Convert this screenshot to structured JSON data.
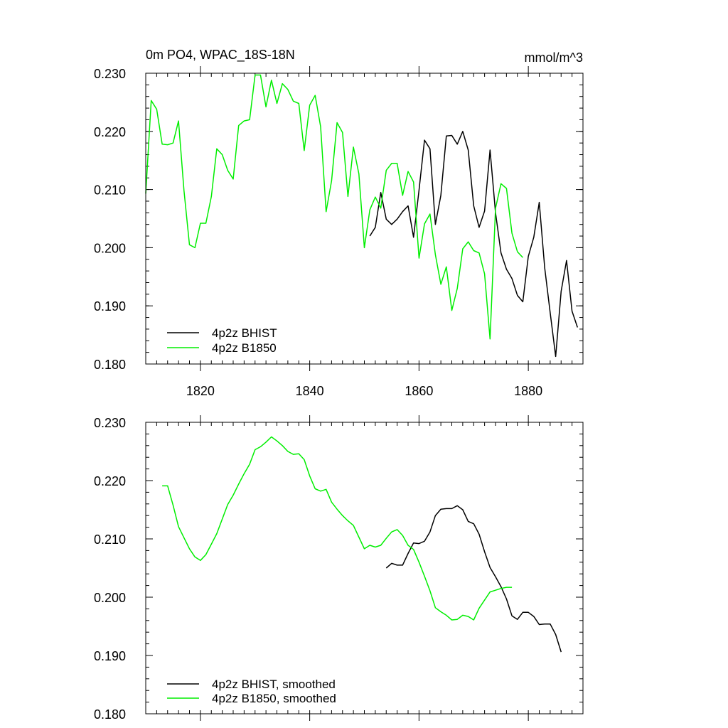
{
  "colors": {
    "bhist": "#000000",
    "b1850": "#00ee00",
    "axis": "#000000",
    "background": "#ffffff"
  },
  "chart_data": [
    {
      "type": "line",
      "title": "0m PO4, WPAC_18S-18N",
      "units": "mmol/m^3",
      "xlim": [
        1810,
        1890
      ],
      "ylim": [
        0.18,
        0.23
      ],
      "xticks": [
        1820,
        1840,
        1860,
        1880
      ],
      "xtick_labels": [
        "1820",
        "1840",
        "1860",
        "1880"
      ],
      "yticks": [
        0.18,
        0.19,
        0.2,
        0.21,
        0.22,
        0.23
      ],
      "ytick_labels": [
        "0.180",
        "0.190",
        "0.200",
        "0.210",
        "0.220",
        "0.230"
      ],
      "grid": false,
      "legend": "bottom-left",
      "series": [
        {
          "name": "4p2z BHIST",
          "color": "#000000",
          "x": [
            1851,
            1852,
            1853,
            1854,
            1855,
            1856,
            1857,
            1858,
            1859,
            1860,
            1861,
            1862,
            1863,
            1864,
            1865,
            1866,
            1867,
            1868,
            1869,
            1870,
            1871,
            1872,
            1873,
            1874,
            1875,
            1876,
            1877,
            1878,
            1879,
            1880,
            1881,
            1882,
            1883,
            1884,
            1885,
            1886,
            1887,
            1888,
            1889
          ],
          "y": [
            0.202,
            0.2035,
            0.2095,
            0.2049,
            0.204,
            0.2049,
            0.2062,
            0.2072,
            0.2018,
            0.2099,
            0.2185,
            0.217,
            0.204,
            0.209,
            0.2192,
            0.2193,
            0.2178,
            0.22,
            0.2168,
            0.2072,
            0.2035,
            0.2063,
            0.2168,
            0.206,
            0.1991,
            0.1963,
            0.1947,
            0.1918,
            0.1907,
            0.1985,
            0.2018,
            0.2078,
            0.1965,
            0.1888,
            0.1813,
            0.1925,
            0.1978,
            0.1891,
            0.1863
          ]
        },
        {
          "name": "4p2z B1850",
          "color": "#00ee00",
          "x": [
            1810,
            1811,
            1812,
            1813,
            1814,
            1815,
            1816,
            1817,
            1818,
            1819,
            1820,
            1821,
            1822,
            1823,
            1824,
            1825,
            1826,
            1827,
            1828,
            1829,
            1830,
            1831,
            1832,
            1833,
            1834,
            1835,
            1836,
            1837,
            1838,
            1839,
            1840,
            1841,
            1842,
            1843,
            1844,
            1845,
            1846,
            1847,
            1848,
            1849,
            1850,
            1851,
            1852,
            1853,
            1854,
            1855,
            1856,
            1857,
            1858,
            1859,
            1860,
            1861,
            1862,
            1863,
            1864,
            1865,
            1866,
            1867,
            1868,
            1869,
            1870,
            1871,
            1872,
            1873,
            1874,
            1875,
            1876,
            1877,
            1878,
            1879
          ],
          "y": [
            0.2093,
            0.2253,
            0.2238,
            0.2178,
            0.2177,
            0.218,
            0.2218,
            0.2098,
            0.2005,
            0.2,
            0.2042,
            0.2042,
            0.2088,
            0.217,
            0.216,
            0.2133,
            0.2118,
            0.221,
            0.2218,
            0.222,
            0.2297,
            0.2297,
            0.2242,
            0.2288,
            0.2248,
            0.2282,
            0.2272,
            0.2252,
            0.2248,
            0.2167,
            0.2245,
            0.2262,
            0.2208,
            0.2062,
            0.2115,
            0.2215,
            0.2198,
            0.2088,
            0.2173,
            0.2127,
            0.2,
            0.2065,
            0.2087,
            0.2068,
            0.2133,
            0.2145,
            0.2145,
            0.209,
            0.2131,
            0.2113,
            0.1982,
            0.2041,
            0.2058,
            0.1988,
            0.1937,
            0.1967,
            0.1892,
            0.193,
            0.1998,
            0.201,
            0.1995,
            0.1991,
            0.1955,
            0.1843,
            0.2068,
            0.211,
            0.2102,
            0.2025,
            0.1993,
            0.1983
          ]
        }
      ]
    },
    {
      "type": "line",
      "title": "",
      "xlim": [
        1810,
        1890
      ],
      "ylim": [
        0.18,
        0.23
      ],
      "xticks": [
        1820,
        1840,
        1860,
        1880
      ],
      "yticks": [
        0.18,
        0.19,
        0.2,
        0.21,
        0.22,
        0.23
      ],
      "ytick_labels": [
        "0.180",
        "0.190",
        "0.200",
        "0.210",
        "0.220",
        "0.230"
      ],
      "grid": false,
      "legend": "bottom-left",
      "series": [
        {
          "name": "4p2z BHIST, smoothed",
          "color": "#000000",
          "x": [
            1854,
            1855,
            1856,
            1857,
            1858,
            1859,
            1860,
            1861,
            1862,
            1863,
            1864,
            1865,
            1866,
            1867,
            1868,
            1869,
            1870,
            1871,
            1872,
            1873,
            1874,
            1875,
            1876,
            1877,
            1878,
            1879,
            1880,
            1881,
            1882,
            1883,
            1884,
            1885,
            1886
          ],
          "y": [
            0.205,
            0.2058,
            0.2055,
            0.2055,
            0.2075,
            0.2093,
            0.2092,
            0.2096,
            0.2112,
            0.214,
            0.2151,
            0.2152,
            0.2152,
            0.2157,
            0.215,
            0.213,
            0.2126,
            0.2108,
            0.2078,
            0.2051,
            0.2035,
            0.2018,
            0.1997,
            0.1968,
            0.1962,
            0.1974,
            0.1974,
            0.1967,
            0.1953,
            0.1954,
            0.1954,
            0.1936,
            0.1906
          ]
        },
        {
          "name": "4p2z B1850, smoothed",
          "color": "#00ee00",
          "x": [
            1813,
            1814,
            1815,
            1816,
            1817,
            1818,
            1819,
            1820,
            1821,
            1822,
            1823,
            1824,
            1825,
            1826,
            1827,
            1828,
            1829,
            1830,
            1831,
            1832,
            1833,
            1834,
            1835,
            1836,
            1837,
            1838,
            1839,
            1840,
            1841,
            1842,
            1843,
            1844,
            1845,
            1846,
            1847,
            1848,
            1849,
            1850,
            1851,
            1852,
            1853,
            1854,
            1855,
            1856,
            1857,
            1858,
            1859,
            1860,
            1861,
            1862,
            1863,
            1864,
            1865,
            1866,
            1867,
            1868,
            1869,
            1870,
            1871,
            1872,
            1873,
            1874,
            1875,
            1876,
            1877
          ],
          "y": [
            0.2191,
            0.2191,
            0.2158,
            0.2121,
            0.2102,
            0.2083,
            0.2069,
            0.2063,
            0.2073,
            0.2091,
            0.2109,
            0.2134,
            0.2159,
            0.2175,
            0.2194,
            0.2212,
            0.2228,
            0.2253,
            0.2258,
            0.2266,
            0.2275,
            0.2268,
            0.226,
            0.225,
            0.2245,
            0.2246,
            0.2236,
            0.2208,
            0.2186,
            0.2182,
            0.2185,
            0.2163,
            0.2151,
            0.214,
            0.2131,
            0.2123,
            0.2103,
            0.2083,
            0.2089,
            0.2086,
            0.2089,
            0.2101,
            0.2112,
            0.2116,
            0.2106,
            0.2089,
            0.2082,
            0.206,
            0.2036,
            0.2011,
            0.1982,
            0.1975,
            0.1969,
            0.1961,
            0.1962,
            0.1969,
            0.1967,
            0.1961,
            0.1981,
            0.1995,
            0.2009,
            0.2012,
            0.2015,
            0.2017,
            0.2017
          ]
        }
      ]
    }
  ]
}
